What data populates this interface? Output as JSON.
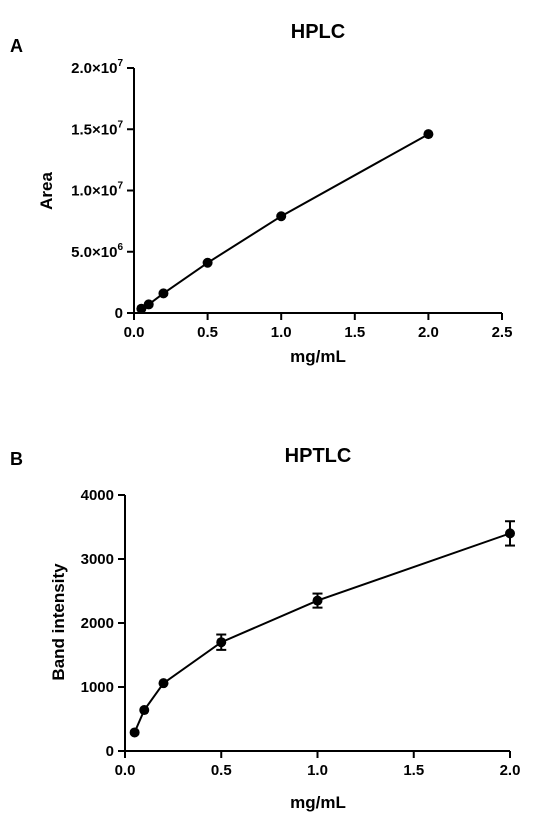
{
  "chart_data": [
    {
      "type": "line",
      "panel_letter": "A",
      "title": "HPLC",
      "xlabel": "mg/mL",
      "ylabel": "Area",
      "xlim": [
        0,
        2.5
      ],
      "ylim": [
        0,
        20000000
      ],
      "x_ticks": [
        "0.0",
        "0.5",
        "1.0",
        "1.5",
        "2.0",
        "2.5"
      ],
      "y_ticks": [
        {
          "mantissa": "0",
          "exp": ""
        },
        {
          "mantissa": "5.0×10",
          "exp": "6"
        },
        {
          "mantissa": "1.0×10",
          "exp": "7"
        },
        {
          "mantissa": "1.5×10",
          "exp": "7"
        },
        {
          "mantissa": "2.0×10",
          "exp": "7"
        }
      ],
      "series": [
        {
          "x": [
            0.05,
            0.1,
            0.2,
            0.5,
            1.0,
            2.0
          ],
          "y": [
            350000,
            700000,
            1600000,
            4100000,
            7900000,
            14600000
          ]
        }
      ],
      "grid": false
    },
    {
      "type": "line",
      "panel_letter": "B",
      "title": "HPTLC",
      "xlabel": "mg/mL",
      "ylabel": "Band intensity",
      "xlim": [
        0,
        2.0
      ],
      "ylim": [
        0,
        4000
      ],
      "x_ticks": [
        "0.0",
        "0.5",
        "1.0",
        "1.5",
        "2.0"
      ],
      "y_ticks": [
        "0",
        "1000",
        "2000",
        "3000",
        "4000"
      ],
      "series": [
        {
          "x": [
            0.05,
            0.1,
            0.2,
            0.5,
            1.0,
            2.0
          ],
          "y": [
            290,
            640,
            1060,
            1700,
            2350,
            3400
          ],
          "error": [
            0,
            0,
            0,
            120,
            110,
            190
          ]
        }
      ],
      "grid": false
    }
  ]
}
